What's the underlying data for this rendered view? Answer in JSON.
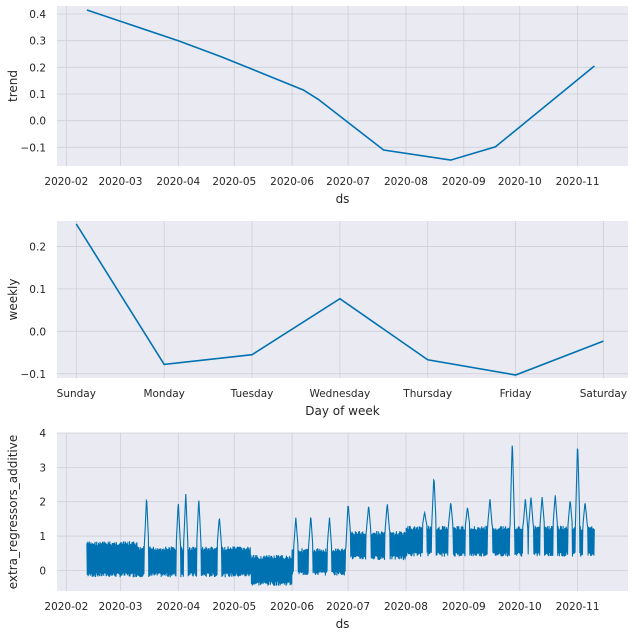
{
  "colors": {
    "background": "#eaeaf2",
    "grid": "#cfcfd6",
    "line": "#0072b2",
    "text": "#262626"
  },
  "chart_data": [
    {
      "type": "line",
      "name": "trend",
      "xlabel": "ds",
      "ylabel": "trend",
      "x_is_date": true,
      "xlim": [
        "2020-01-27",
        "2020-11-28"
      ],
      "ylim": [
        -0.17,
        0.43
      ],
      "xticks": [
        {
          "date": "2020-02-01",
          "label": "2020-02"
        },
        {
          "date": "2020-03-01",
          "label": "2020-03"
        },
        {
          "date": "2020-04-01",
          "label": "2020-04"
        },
        {
          "date": "2020-05-01",
          "label": "2020-05"
        },
        {
          "date": "2020-06-01",
          "label": "2020-06"
        },
        {
          "date": "2020-07-01",
          "label": "2020-07"
        },
        {
          "date": "2020-08-01",
          "label": "2020-08"
        },
        {
          "date": "2020-09-01",
          "label": "2020-09"
        },
        {
          "date": "2020-10-01",
          "label": "2020-10"
        },
        {
          "date": "2020-11-01",
          "label": "2020-11"
        }
      ],
      "yticks": [
        {
          "value": -0.1,
          "label": "−0.1"
        },
        {
          "value": 0.0,
          "label": "0.0"
        },
        {
          "value": 0.1,
          "label": "0.1"
        },
        {
          "value": 0.2,
          "label": "0.2"
        },
        {
          "value": 0.3,
          "label": "0.3"
        },
        {
          "value": 0.4,
          "label": "0.4"
        }
      ],
      "series": [
        {
          "name": "trend",
          "points": [
            [
              "2020-02-12",
              0.415
            ],
            [
              "2020-04-01",
              0.3
            ],
            [
              "2020-04-24",
              0.24
            ],
            [
              "2020-06-07",
              0.115
            ],
            [
              "2020-06-15",
              0.08
            ],
            [
              "2020-07-20",
              -0.11
            ],
            [
              "2020-08-25",
              -0.148
            ],
            [
              "2020-09-18",
              -0.098
            ],
            [
              "2020-11-10",
              0.205
            ]
          ]
        }
      ]
    },
    {
      "type": "line",
      "name": "weekly",
      "xlabel": "Day of week",
      "ylabel": "weekly",
      "categories": [
        "Sunday",
        "Monday",
        "Tuesday",
        "Wednesday",
        "Thursday",
        "Friday",
        "Saturday"
      ],
      "xlim": [
        -0.22,
        6.28
      ],
      "ylim": [
        -0.11,
        0.26
      ],
      "yticks": [
        {
          "value": -0.1,
          "label": "−0.1"
        },
        {
          "value": 0.0,
          "label": "0.0"
        },
        {
          "value": 0.1,
          "label": "0.1"
        },
        {
          "value": 0.2,
          "label": "0.2"
        }
      ],
      "series": [
        {
          "name": "weekly",
          "values": [
            0.253,
            -0.078,
            -0.055,
            0.077,
            -0.067,
            -0.103,
            -0.023
          ]
        }
      ]
    },
    {
      "type": "line",
      "name": "extra_regressors_additive",
      "xlabel": "ds",
      "ylabel": "extra_regressors_additive",
      "x_is_date": true,
      "xlim": [
        "2020-01-27",
        "2020-11-28"
      ],
      "ylim": [
        -0.6,
        4.0
      ],
      "xticks": [
        {
          "date": "2020-02-01",
          "label": "2020-02"
        },
        {
          "date": "2020-03-01",
          "label": "2020-03"
        },
        {
          "date": "2020-04-01",
          "label": "2020-04"
        },
        {
          "date": "2020-05-01",
          "label": "2020-05"
        },
        {
          "date": "2020-06-01",
          "label": "2020-06"
        },
        {
          "date": "2020-07-01",
          "label": "2020-07"
        },
        {
          "date": "2020-08-01",
          "label": "2020-08"
        },
        {
          "date": "2020-09-01",
          "label": "2020-09"
        },
        {
          "date": "2020-10-01",
          "label": "2020-10"
        },
        {
          "date": "2020-11-01",
          "label": "2020-11"
        }
      ],
      "yticks": [
        {
          "value": 0,
          "label": "0"
        },
        {
          "value": 1,
          "label": "1"
        },
        {
          "value": 2,
          "label": "2"
        },
        {
          "value": 3,
          "label": "3"
        },
        {
          "value": 4,
          "label": "4"
        }
      ],
      "series": [
        {
          "name": "extra_regressors_additive",
          "start": "2020-02-12",
          "end": "2020-11-10",
          "segments": [
            {
              "start": "2020-02-12",
              "end": "2020-03-10",
              "low": -0.2,
              "high": 0.85
            },
            {
              "start": "2020-03-10",
              "end": "2020-05-10",
              "low": -0.2,
              "high": 0.7
            },
            {
              "start": "2020-05-10",
              "end": "2020-06-01",
              "low": -0.45,
              "high": 0.45
            },
            {
              "start": "2020-06-01",
              "end": "2020-07-01",
              "low": -0.15,
              "high": 0.65
            },
            {
              "start": "2020-07-01",
              "end": "2020-08-01",
              "low": 0.3,
              "high": 1.15
            },
            {
              "start": "2020-08-01",
              "end": "2020-11-10",
              "low": 0.4,
              "high": 1.3
            }
          ],
          "spikes": [
            {
              "date": "2020-03-15",
              "value": 2.15
            },
            {
              "date": "2020-04-01",
              "value": 2.0
            },
            {
              "date": "2020-04-05",
              "value": 2.25
            },
            {
              "date": "2020-04-12",
              "value": 2.1
            },
            {
              "date": "2020-04-23",
              "value": 1.55
            },
            {
              "date": "2020-06-03",
              "value": 1.55
            },
            {
              "date": "2020-06-11",
              "value": 1.6
            },
            {
              "date": "2020-06-21",
              "value": 1.55
            },
            {
              "date": "2020-07-01",
              "value": 1.95
            },
            {
              "date": "2020-07-12",
              "value": 1.9
            },
            {
              "date": "2020-07-22",
              "value": 1.95
            },
            {
              "date": "2020-08-11",
              "value": 1.7
            },
            {
              "date": "2020-08-16",
              "value": 2.75
            },
            {
              "date": "2020-08-25",
              "value": 2.0
            },
            {
              "date": "2020-09-03",
              "value": 1.85
            },
            {
              "date": "2020-09-15",
              "value": 2.1
            },
            {
              "date": "2020-09-27",
              "value": 3.8
            },
            {
              "date": "2020-10-04",
              "value": 2.1
            },
            {
              "date": "2020-10-07",
              "value": 2.15
            },
            {
              "date": "2020-10-13",
              "value": 2.15
            },
            {
              "date": "2020-10-20",
              "value": 2.2
            },
            {
              "date": "2020-10-28",
              "value": 2.05
            },
            {
              "date": "2020-11-01",
              "value": 3.75
            },
            {
              "date": "2020-11-05",
              "value": 2.0
            }
          ]
        }
      ]
    }
  ]
}
